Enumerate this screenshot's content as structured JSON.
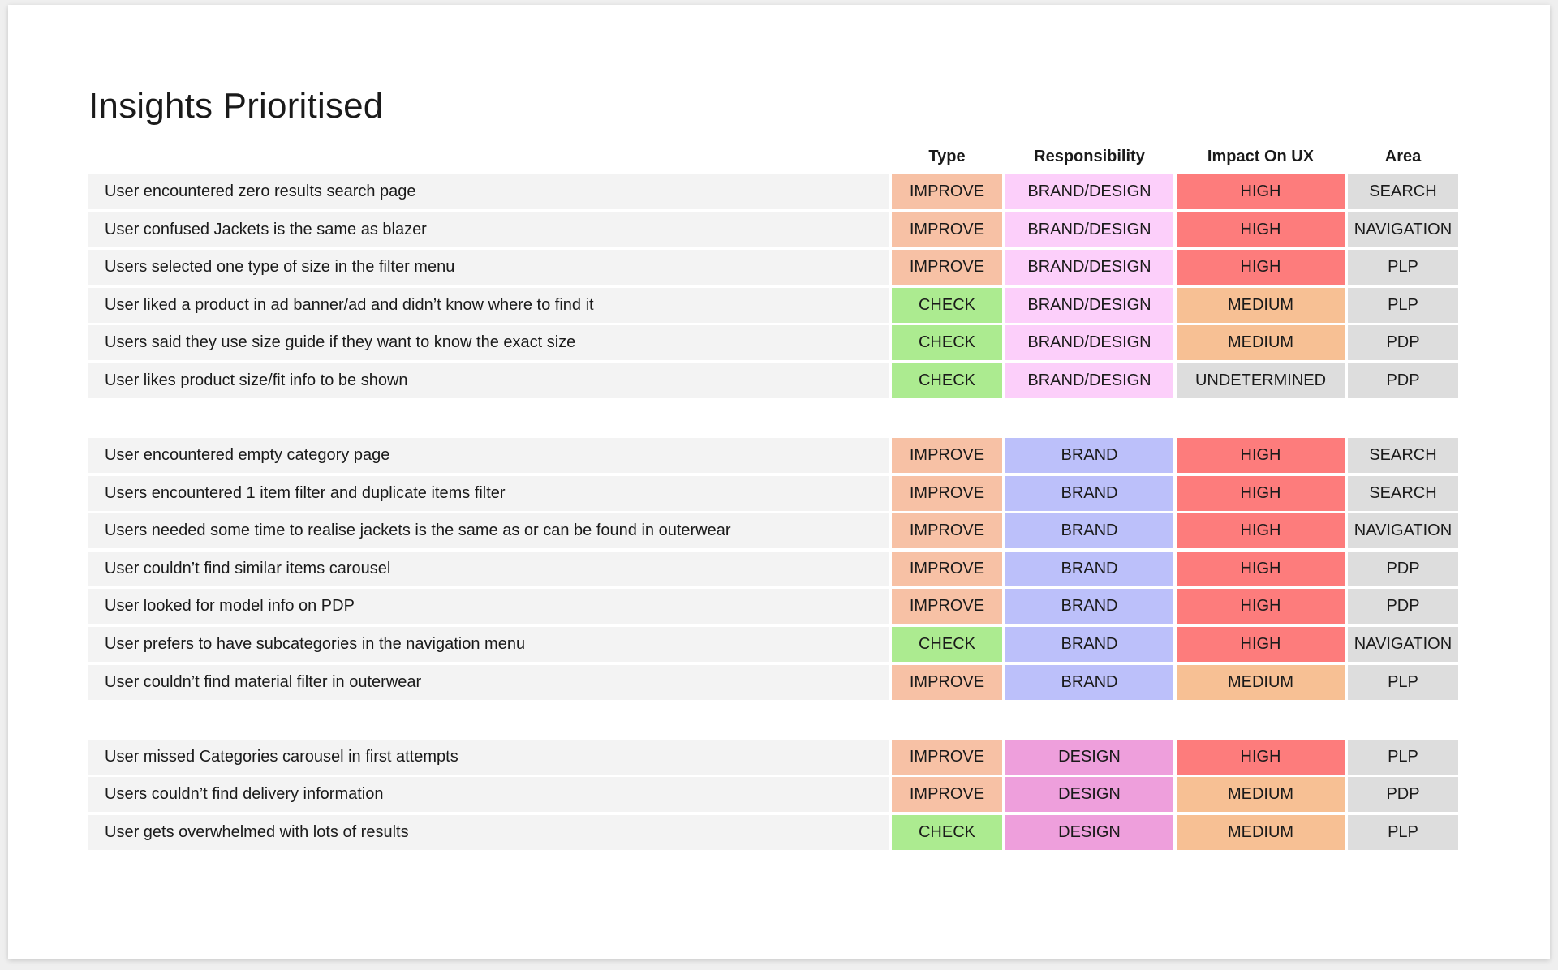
{
  "title": "Insights Prioritised",
  "headers": {
    "type": "Type",
    "responsibility": "Responsibility",
    "impact": "Impact On UX",
    "area": "Area"
  },
  "colors": {
    "IMPROVE": "#f7c1a5",
    "CHECK": "#aceb90",
    "BRAND/DESIGN": "#fccffa",
    "BRAND": "#bcc0fa",
    "DESIGN": "#ee9fdc",
    "HIGH": "#fd7c7c",
    "MEDIUM": "#f7c094",
    "UNDETERMINED": "#dddddd",
    "area": "#dddddd",
    "row_bg": "#f3f3f3"
  },
  "groups": [
    {
      "rows": [
        {
          "text": "User encountered zero results search page",
          "type": "IMPROVE",
          "responsibility": "BRAND/DESIGN",
          "impact": "HIGH",
          "area": "SEARCH"
        },
        {
          "text": "User confused Jackets is the same as blazer",
          "type": "IMPROVE",
          "responsibility": "BRAND/DESIGN",
          "impact": "HIGH",
          "area": "NAVIGATION"
        },
        {
          "text": "Users selected one type of size in the filter menu",
          "type": "IMPROVE",
          "responsibility": "BRAND/DESIGN",
          "impact": "HIGH",
          "area": "PLP"
        },
        {
          "text": "User liked a product in ad banner/ad and didn’t know where to find it",
          "type": "CHECK",
          "responsibility": "BRAND/DESIGN",
          "impact": "MEDIUM",
          "area": "PLP"
        },
        {
          "text": "Users said they use size guide if they want to know the exact size",
          "type": "CHECK",
          "responsibility": "BRAND/DESIGN",
          "impact": "MEDIUM",
          "area": "PDP"
        },
        {
          "text": "User likes product size/fit info to be shown",
          "type": "CHECK",
          "responsibility": "BRAND/DESIGN",
          "impact": "UNDETERMINED",
          "area": "PDP"
        }
      ]
    },
    {
      "rows": [
        {
          "text": "User encountered empty category page",
          "type": "IMPROVE",
          "responsibility": "BRAND",
          "impact": "HIGH",
          "area": "SEARCH"
        },
        {
          "text": "Users encountered 1 item filter and duplicate items filter",
          "type": "IMPROVE",
          "responsibility": "BRAND",
          "impact": "HIGH",
          "area": "SEARCH"
        },
        {
          "text": "Users needed some time to realise jackets is the same as or can be found in outerwear",
          "type": "IMPROVE",
          "responsibility": "BRAND",
          "impact": "HIGH",
          "area": "NAVIGATION"
        },
        {
          "text": "User couldn’t find similar items carousel",
          "type": "IMPROVE",
          "responsibility": "BRAND",
          "impact": "HIGH",
          "area": "PDP"
        },
        {
          "text": "User looked for model info on PDP",
          "type": "IMPROVE",
          "responsibility": "BRAND",
          "impact": "HIGH",
          "area": "PDP"
        },
        {
          "text": "User prefers to have subcategories in the navigation menu",
          "type": "CHECK",
          "responsibility": "BRAND",
          "impact": "HIGH",
          "area": "NAVIGATION"
        },
        {
          "text": "User couldn’t find material filter in outerwear",
          "type": "IMPROVE",
          "responsibility": "BRAND",
          "impact": "MEDIUM",
          "area": "PLP"
        }
      ]
    },
    {
      "rows": [
        {
          "text": "User missed Categories carousel in first attempts",
          "type": "IMPROVE",
          "responsibility": "DESIGN",
          "impact": "HIGH",
          "area": "PLP"
        },
        {
          "text": "Users couldn’t find delivery information",
          "type": "IMPROVE",
          "responsibility": "DESIGN",
          "impact": "MEDIUM",
          "area": "PDP"
        },
        {
          "text": "User gets overwhelmed with lots of results",
          "type": "CHECK",
          "responsibility": "DESIGN",
          "impact": "MEDIUM",
          "area": "PLP"
        }
      ]
    }
  ]
}
